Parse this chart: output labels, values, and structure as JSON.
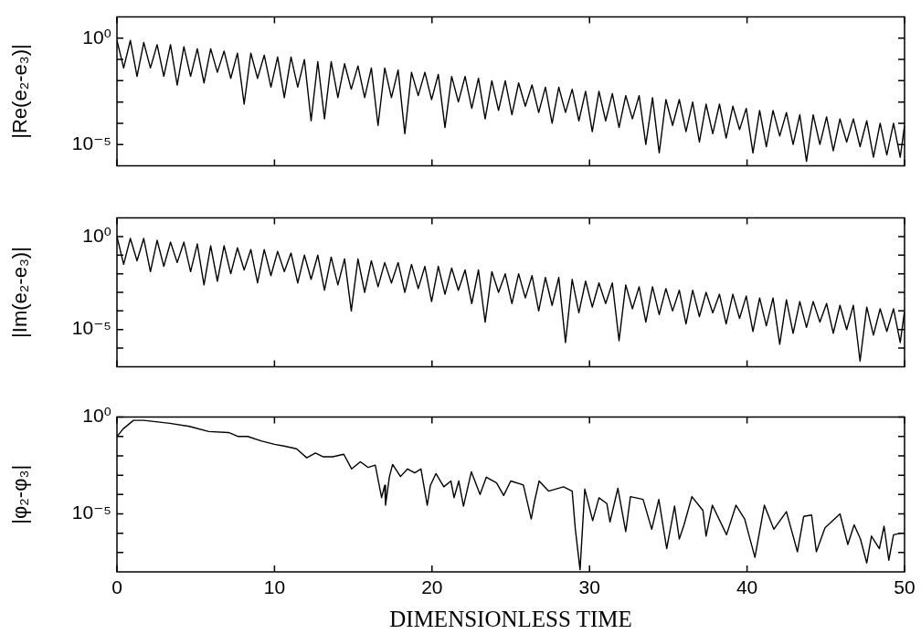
{
  "chart_data": [
    {
      "type": "line",
      "ylabel": "|Re(e₂-e₃)|",
      "log": true,
      "marker": "none",
      "line_style": "solid",
      "tick_labels": "y",
      "color": "#000000",
      "xlim": [
        0,
        50
      ],
      "xticks": [
        0,
        10,
        20,
        30,
        40,
        50
      ],
      "ylim": [
        1e-06,
        10
      ],
      "yticks": [
        {
          "value": 1,
          "label": "10⁰"
        },
        {
          "value": 0.1,
          "label": null
        },
        {
          "value": 0.01,
          "label": null
        },
        {
          "value": 0.001,
          "label": null
        },
        {
          "value": 0.0001,
          "label": null
        },
        {
          "value": 1e-05,
          "label": "10⁻⁵"
        }
      ],
      "x": [
        0,
        0.425,
        0.85,
        1.275,
        1.7,
        2.125,
        2.55,
        2.975,
        3.4,
        3.825,
        4.25,
        4.675,
        5.1,
        5.525,
        5.95,
        6.375,
        6.8,
        7.225,
        7.65,
        8.075,
        8.5,
        8.925,
        9.35,
        9.775,
        10.2,
        10.625,
        11.05,
        11.475,
        11.9,
        12.325,
        12.75,
        13.175,
        13.6,
        14.025,
        14.45,
        14.875,
        15.3,
        15.725,
        16.15,
        16.575,
        17,
        17.425,
        17.85,
        18.275,
        18.7,
        19.125,
        19.55,
        19.975,
        20.4,
        20.825,
        21.25,
        21.675,
        22.1,
        22.525,
        22.95,
        23.375,
        23.8,
        24.225,
        24.65,
        25.075,
        25.5,
        25.925,
        26.35,
        26.775,
        27.2,
        27.625,
        28.05,
        28.475,
        28.9,
        29.325,
        29.75,
        30.175,
        30.6,
        31.025,
        31.45,
        31.875,
        32.3,
        32.725,
        33.15,
        33.575,
        34,
        34.425,
        34.85,
        35.275,
        35.7,
        36.125,
        36.55,
        36.975,
        37.4,
        37.825,
        38.25,
        38.675,
        39.1,
        39.525,
        39.95,
        40.375,
        40.8,
        41.225,
        41.65,
        42.075,
        42.5,
        42.925,
        43.35,
        43.775,
        44.2,
        44.625,
        45.05,
        45.475,
        45.9,
        46.325,
        46.75,
        47.175,
        47.6,
        48.025,
        48.45,
        48.875,
        49.3,
        49.725,
        50
      ],
      "values": [
        0.79,
        0.04,
        0.79,
        0.016,
        0.63,
        0.04,
        0.5,
        0.016,
        0.5,
        0.0063,
        0.4,
        0.016,
        0.32,
        0.0079,
        0.32,
        0.025,
        0.25,
        0.013,
        0.2,
        0.00079,
        0.2,
        0.013,
        0.16,
        0.005,
        0.13,
        0.0016,
        0.13,
        0.005,
        0.1,
        0.00013,
        0.079,
        0.00016,
        0.079,
        0.0016,
        0.063,
        0.004,
        0.05,
        0.0016,
        0.04,
        7.9e-05,
        0.04,
        0.0016,
        0.032,
        3.2e-05,
        0.025,
        0.002,
        0.025,
        0.0013,
        0.02,
        6.3e-05,
        0.016,
        0.001,
        0.016,
        0.0005,
        0.013,
        0.00016,
        0.01,
        0.0004,
        0.01,
        0.00025,
        0.0079,
        0.00063,
        0.0063,
        0.00032,
        0.005,
        0.0001,
        0.005,
        0.00032,
        0.004,
        0.00013,
        0.0032,
        4e-05,
        0.0032,
        0.00013,
        0.0025,
        6.3e-05,
        0.002,
        0.00016,
        0.002,
        1e-05,
        0.0016,
        4e-06,
        0.0013,
        7.9e-05,
        0.0013,
        4e-05,
        0.001,
        1.3e-05,
        0.00079,
        3.2e-05,
        0.00079,
        2e-05,
        0.00063,
        5e-05,
        0.0005,
        4e-06,
        0.0004,
        7.9e-06,
        0.0004,
        2.5e-05,
        0.00032,
        1e-05,
        0.00025,
        1.6e-06,
        0.00025,
        1e-05,
        0.0002,
        5e-06,
        0.00016,
        1.3e-05,
        0.00016,
        7.9e-06,
        0.00013,
        2.5e-06,
        0.0001,
        3.2e-06,
        0.0001,
        2.5e-06,
        7.9e-05
      ]
    },
    {
      "type": "line",
      "ylabel": "|Im(e₂-e₃)|",
      "log": true,
      "marker": "none",
      "line_style": "solid",
      "tick_labels": "y",
      "color": "#000000",
      "xlim": [
        0,
        50
      ],
      "xticks": [
        0,
        10,
        20,
        30,
        40,
        50
      ],
      "ylim": [
        1e-07,
        10
      ],
      "yticks": [
        {
          "value": 1,
          "label": "10⁰"
        },
        {
          "value": 0.1,
          "label": null
        },
        {
          "value": 0.01,
          "label": null
        },
        {
          "value": 0.001,
          "label": null
        },
        {
          "value": 0.0001,
          "label": null
        },
        {
          "value": 1e-05,
          "label": "10⁻⁵"
        },
        {
          "value": 1e-06,
          "label": null
        }
      ],
      "x": [
        0,
        0.425,
        0.85,
        1.275,
        1.7,
        2.125,
        2.55,
        2.975,
        3.4,
        3.825,
        4.25,
        4.675,
        5.1,
        5.525,
        5.95,
        6.375,
        6.8,
        7.225,
        7.65,
        8.075,
        8.5,
        8.925,
        9.35,
        9.775,
        10.2,
        10.625,
        11.05,
        11.475,
        11.9,
        12.325,
        12.75,
        13.175,
        13.6,
        14.025,
        14.45,
        14.875,
        15.3,
        15.725,
        16.15,
        16.575,
        17,
        17.425,
        17.85,
        18.275,
        18.7,
        19.125,
        19.55,
        19.975,
        20.4,
        20.825,
        21.25,
        21.675,
        22.1,
        22.525,
        22.95,
        23.375,
        23.8,
        24.225,
        24.65,
        25.075,
        25.5,
        25.925,
        26.35,
        26.775,
        27.2,
        27.625,
        28.05,
        28.475,
        28.9,
        29.325,
        29.75,
        30.175,
        30.6,
        31.025,
        31.45,
        31.875,
        32.3,
        32.725,
        33.15,
        33.575,
        34,
        34.425,
        34.85,
        35.275,
        35.7,
        36.125,
        36.55,
        36.975,
        37.4,
        37.825,
        38.25,
        38.675,
        39.1,
        39.525,
        39.95,
        40.375,
        40.8,
        41.225,
        41.65,
        42.075,
        42.5,
        42.925,
        43.35,
        43.775,
        44.2,
        44.625,
        45.05,
        45.475,
        45.9,
        46.325,
        46.75,
        47.175,
        47.6,
        48.025,
        48.45,
        48.875,
        49.3,
        49.725,
        50
      ],
      "values": [
        1,
        0.032,
        0.79,
        0.05,
        0.79,
        0.013,
        0.63,
        0.025,
        0.5,
        0.04,
        0.5,
        0.013,
        0.4,
        0.0025,
        0.32,
        0.004,
        0.32,
        0.01,
        0.25,
        0.016,
        0.2,
        0.0032,
        0.2,
        0.0079,
        0.16,
        0.013,
        0.13,
        0.0032,
        0.1,
        0.005,
        0.1,
        0.0013,
        0.079,
        0.0025,
        0.063,
        0.0001,
        0.063,
        0.001,
        0.05,
        0.002,
        0.04,
        0.0032,
        0.04,
        0.001,
        0.032,
        0.0016,
        0.025,
        0.00032,
        0.025,
        0.00079,
        0.02,
        0.0013,
        0.016,
        0.00025,
        0.016,
        2.5e-05,
        0.013,
        0.001,
        0.01,
        0.00025,
        0.01,
        0.0005,
        0.0079,
        0.0001,
        0.0063,
        0.0002,
        0.0063,
        2e-06,
        0.005,
        7.9e-05,
        0.004,
        0.00016,
        0.0032,
        0.00025,
        0.0032,
        2.5e-06,
        0.0025,
        0.00013,
        0.002,
        2.5e-05,
        0.002,
        6.3e-05,
        0.0016,
        0.0001,
        0.0013,
        2e-05,
        0.0013,
        5e-05,
        0.001,
        7.9e-05,
        0.00079,
        2e-05,
        0.00079,
        4e-05,
        0.00063,
        7.9e-06,
        0.0005,
        1.6e-05,
        0.0005,
        1.6e-06,
        0.0004,
        6.3e-06,
        0.00032,
        1.3e-05,
        0.00032,
        2.5e-05,
        0.00025,
        6.3e-06,
        0.0002,
        1e-05,
        0.0002,
        2e-07,
        0.00016,
        5e-06,
        0.00013,
        7.9e-06,
        0.00013,
        2e-06,
        0.0001
      ]
    },
    {
      "type": "line",
      "ylabel": "|φ₂-φ₃|",
      "xlabel": "DIMENSIONLESS TIME",
      "log": true,
      "marker": "none",
      "line_style": "solid",
      "color": "#000000",
      "xlim": [
        0,
        50
      ],
      "xticks": [
        0,
        10,
        20,
        30,
        40,
        50
      ],
      "ylim": [
        1e-08,
        1
      ],
      "yticks": [
        {
          "value": 1,
          "label": "10⁰"
        },
        {
          "value": 0.1,
          "label": null
        },
        {
          "value": 0.01,
          "label": null
        },
        {
          "value": 0.001,
          "label": null
        },
        {
          "value": 0.0001,
          "label": null
        },
        {
          "value": 1e-05,
          "label": "10⁻⁵"
        },
        {
          "value": 1e-06,
          "label": null
        },
        {
          "value": 1e-07,
          "label": null
        }
      ],
      "x": [
        0,
        0.4,
        1.05,
        1.7,
        3.35,
        4.6,
        5.83,
        7.08,
        7.7,
        8.3,
        9.15,
        10,
        10.6,
        11.4,
        12.05,
        12.6,
        13.1,
        13.7,
        14.4,
        14.9,
        15.45,
        15.95,
        16.4,
        16.8,
        17,
        17.05,
        17.3,
        17.5,
        18,
        18.45,
        18.9,
        19.3,
        19.7,
        19.9,
        20.25,
        20.75,
        21.2,
        21.4,
        21.7,
        22,
        22.5,
        23.05,
        23.45,
        24.1,
        24.55,
        25,
        25.8,
        26.3,
        26.5,
        26.8,
        27.4,
        28.35,
        28.9,
        29.1,
        29.4,
        29.7,
        30.2,
        30.6,
        31.1,
        31.3,
        31.8,
        32.3,
        32.6,
        33.4,
        33.95,
        34.4,
        34.9,
        35.4,
        35.7,
        36,
        36.5,
        37.2,
        37.4,
        37.8,
        38.7,
        39.3,
        39.85,
        40.5,
        41.1,
        41.7,
        42.5,
        43.2,
        43.6,
        44.1,
        44.4,
        44.95,
        45.9,
        46.4,
        46.8,
        47.2,
        47.6,
        47.9,
        48.4,
        48.7,
        49,
        49.3,
        49.8,
        50
      ],
      "values": [
        0.1,
        0.25,
        0.68,
        0.68,
        0.48,
        0.33,
        0.18,
        0.16,
        0.1,
        0.1,
        0.059,
        0.039,
        0.032,
        0.023,
        0.0079,
        0.014,
        0.0089,
        0.0089,
        0.012,
        0.0021,
        0.0049,
        0.0025,
        0.0033,
        6.9e-05,
        0.0003,
        2.8e-05,
        0.00085,
        0.0036,
        0.00085,
        0.0021,
        0.0013,
        0.0021,
        2.8e-05,
        0.0003,
        0.0012,
        0.00025,
        0.0005,
        6.9e-05,
        0.0005,
        2.5e-05,
        0.0015,
        0.0001,
        0.00079,
        0.0004,
        8.9e-05,
        0.0005,
        0.00031,
        5.4e-06,
        4.1e-05,
        0.0005,
        0.00015,
        0.00025,
        0.00015,
        1.6e-06,
        1.3e-08,
        0.00019,
        4.5e-06,
        6.8e-05,
        3.4e-05,
        3.8e-06,
        0.00021,
        1.2e-06,
        7.8e-05,
        5.6e-05,
        1.6e-06,
        5.6e-05,
        1.6e-07,
        2.5e-05,
        5e-07,
        2.7e-06,
        7.8e-05,
        1.5e-05,
        7.1e-07,
        2.8e-05,
        8.3e-07,
        2.8e-05,
        5.4e-06,
        5.6e-08,
        2.8e-05,
        1.6e-06,
        1.3e-05,
        1.1e-07,
        7.4e-06,
        8.7e-06,
        1.1e-07,
        1.9e-06,
        1e-05,
        2.6e-07,
        2.7e-06,
        5e-07,
        2.9e-08,
        7.1e-07,
        1.6e-07,
        2.3e-06,
        4e-08,
        8.3e-07,
        1e-06,
        1e-06
      ]
    }
  ]
}
